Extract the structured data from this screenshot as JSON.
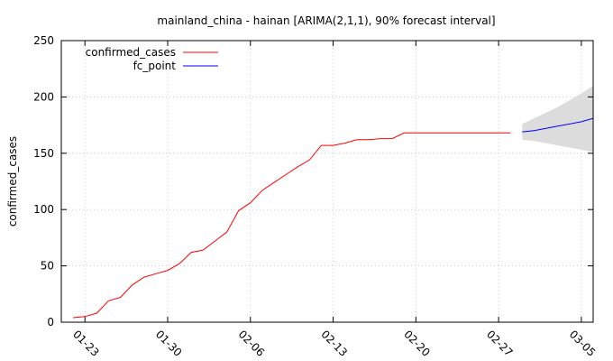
{
  "chart_data": {
    "type": "line",
    "title": "mainland_china - hainan [ARIMA(2,1,1), 90% forecast interval]",
    "xlabel": "",
    "ylabel": "confirmed_cases",
    "ylim": [
      0,
      250
    ],
    "yticks": [
      0,
      50,
      100,
      150,
      200,
      250
    ],
    "xticks": [
      "01-23",
      "01-30",
      "02-06",
      "02-13",
      "02-20",
      "02-27",
      "03-05"
    ],
    "xlim": [
      "2020-01-21",
      "2020-03-06"
    ],
    "grid": true,
    "legend_position": "top-left",
    "series": [
      {
        "name": "confirmed_cases",
        "color": "#ff0000",
        "points": [
          [
            "2020-01-22",
            4
          ],
          [
            "2020-01-23",
            5
          ],
          [
            "2020-01-24",
            8
          ],
          [
            "2020-01-25",
            19
          ],
          [
            "2020-01-26",
            22
          ],
          [
            "2020-01-27",
            33
          ],
          [
            "2020-01-28",
            40
          ],
          [
            "2020-01-29",
            43
          ],
          [
            "2020-01-30",
            46
          ],
          [
            "2020-01-31",
            52
          ],
          [
            "2020-02-01",
            62
          ],
          [
            "2020-02-02",
            64
          ],
          [
            "2020-02-03",
            72
          ],
          [
            "2020-02-04",
            80
          ],
          [
            "2020-02-05",
            99
          ],
          [
            "2020-02-06",
            106
          ],
          [
            "2020-02-07",
            117
          ],
          [
            "2020-02-08",
            124
          ],
          [
            "2020-02-09",
            131
          ],
          [
            "2020-02-10",
            138
          ],
          [
            "2020-02-11",
            144
          ],
          [
            "2020-02-12",
            157
          ],
          [
            "2020-02-13",
            157
          ],
          [
            "2020-02-14",
            159
          ],
          [
            "2020-02-15",
            162
          ],
          [
            "2020-02-16",
            162
          ],
          [
            "2020-02-17",
            163
          ],
          [
            "2020-02-18",
            163
          ],
          [
            "2020-02-19",
            168
          ],
          [
            "2020-02-20",
            168
          ],
          [
            "2020-02-21",
            168
          ],
          [
            "2020-02-22",
            168
          ],
          [
            "2020-02-23",
            168
          ],
          [
            "2020-02-24",
            168
          ],
          [
            "2020-02-25",
            168
          ],
          [
            "2020-02-26",
            168
          ],
          [
            "2020-02-27",
            168
          ],
          [
            "2020-02-28",
            168
          ]
        ]
      },
      {
        "name": "fc_point",
        "color": "#0000ff",
        "points": [
          [
            "2020-02-29",
            169
          ],
          [
            "2020-03-01",
            170
          ],
          [
            "2020-03-02",
            172
          ],
          [
            "2020-03-03",
            174
          ],
          [
            "2020-03-04",
            176
          ],
          [
            "2020-03-05",
            178
          ],
          [
            "2020-03-06",
            181
          ]
        ]
      }
    ],
    "forecast_interval": {
      "label": "90% forecast interval",
      "color": "#dcdcdc",
      "points": [
        [
          "2020-02-29",
          162,
          176
        ],
        [
          "2020-03-01",
          161,
          181
        ],
        [
          "2020-03-02",
          159,
          186
        ],
        [
          "2020-03-03",
          157,
          191
        ],
        [
          "2020-03-04",
          155,
          197
        ],
        [
          "2020-03-05",
          153,
          203
        ],
        [
          "2020-03-06",
          151,
          210
        ]
      ]
    }
  }
}
